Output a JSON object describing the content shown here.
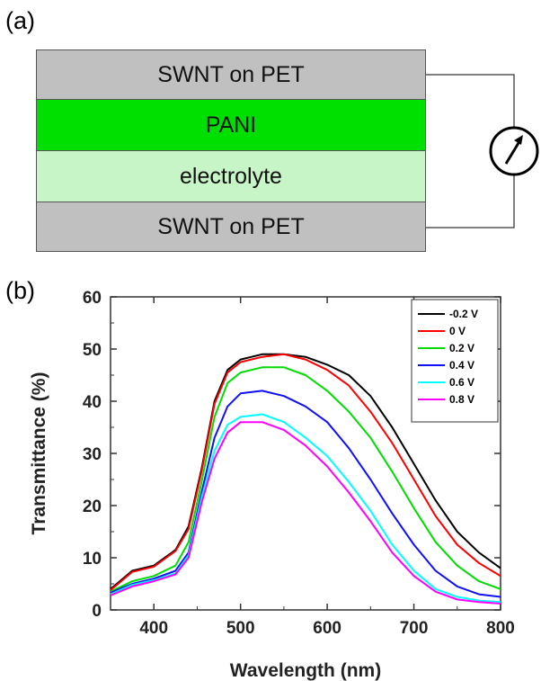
{
  "panel_a": {
    "label": "(a)",
    "layers": [
      {
        "label": "SWNT on PET",
        "color": "#c0c0c0"
      },
      {
        "label": "PANI",
        "color": "#00e000"
      },
      {
        "label": "electrolyte",
        "color": "#c8f5c8"
      },
      {
        "label": "SWNT on PET",
        "color": "#c0c0c0"
      }
    ],
    "meter_icon": "ammeter-icon"
  },
  "panel_b": {
    "label": "(b)"
  },
  "chart_data": {
    "type": "line",
    "xlabel": "Wavelength (nm)",
    "ylabel": "Transmittance (%)",
    "xlim": [
      350,
      800
    ],
    "ylim": [
      0,
      60
    ],
    "xticks": [
      400,
      500,
      600,
      700,
      800
    ],
    "yticks": [
      0,
      10,
      20,
      30,
      40,
      50,
      60
    ],
    "legend_position": "top-right",
    "grid": false,
    "x": [
      350,
      375,
      400,
      425,
      440,
      455,
      470,
      485,
      500,
      525,
      550,
      575,
      600,
      625,
      650,
      675,
      700,
      725,
      750,
      775,
      800
    ],
    "series": [
      {
        "name": "-0.2 V",
        "color": "#000000",
        "values": [
          4.0,
          7.5,
          8.5,
          11.5,
          16,
          27,
          40,
          46,
          48,
          49,
          49,
          48.5,
          47,
          45,
          41,
          35,
          28,
          21,
          15,
          11,
          8
        ]
      },
      {
        "name": "0 V",
        "color": "#ff0000",
        "values": [
          3.8,
          7.3,
          8.3,
          11.3,
          15.5,
          26.5,
          39.5,
          45.5,
          47.5,
          48.5,
          49,
          48,
          46,
          43,
          38,
          32,
          25,
          18,
          12.5,
          9,
          6.5
        ]
      },
      {
        "name": "0.2 V",
        "color": "#00dd00",
        "values": [
          3.5,
          5.5,
          6.5,
          8.5,
          13,
          24.5,
          37,
          43.5,
          45.5,
          46.5,
          46.5,
          45,
          42,
          38,
          33,
          26.5,
          19.5,
          13,
          8.5,
          5.5,
          4
        ]
      },
      {
        "name": "0.4 V",
        "color": "#1010ff",
        "values": [
          3.3,
          5.0,
          6.0,
          7.5,
          11,
          22.5,
          33,
          39,
          41.5,
          42,
          41,
          39,
          36,
          31,
          25,
          18.5,
          12.5,
          7.5,
          4.5,
          3,
          2.5
        ]
      },
      {
        "name": "0.6 V",
        "color": "#00ffff",
        "values": [
          3.0,
          4.8,
          5.7,
          7.0,
          10.5,
          21.5,
          30.5,
          35.5,
          37,
          37.5,
          36,
          33,
          29.5,
          24.5,
          19,
          12.5,
          7.5,
          4,
          2.5,
          1.8,
          1.5
        ]
      },
      {
        "name": "0.8 V",
        "color": "#ff00ff",
        "values": [
          2.8,
          4.5,
          5.5,
          6.8,
          10,
          20.5,
          29,
          34,
          36,
          36,
          34.5,
          31.5,
          27.5,
          22.5,
          17,
          11,
          6.5,
          3.5,
          2,
          1.5,
          1.2
        ]
      }
    ]
  }
}
